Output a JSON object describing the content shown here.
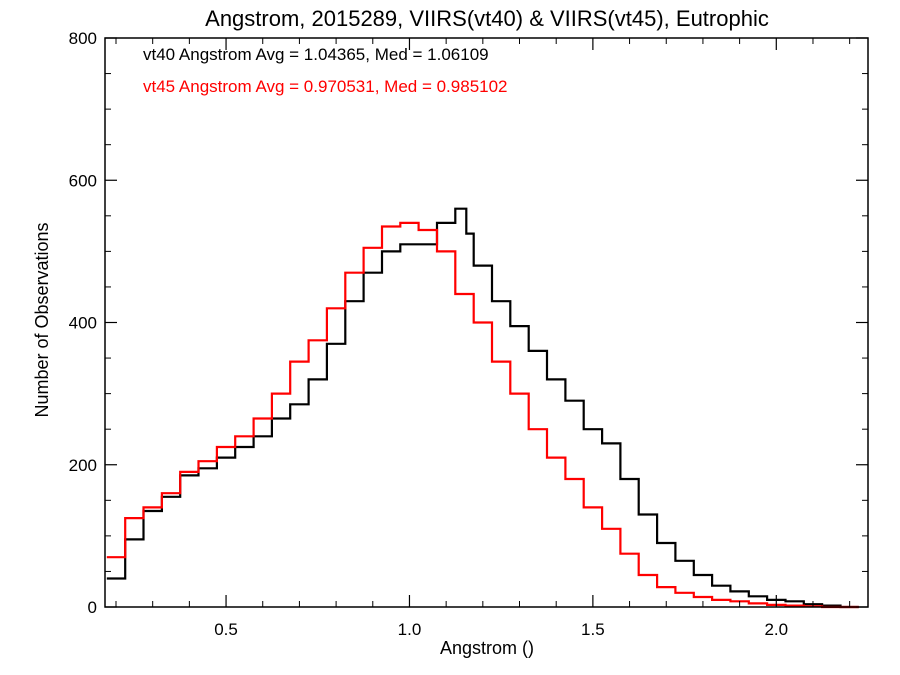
{
  "chart_data": {
    "type": "histogram",
    "title": "Angstrom, 2015289, VIIRS(vt40) & VIIRS(vt45), Eutrophic",
    "xlabel": "Angstrom ()",
    "ylabel": "Number of Observations",
    "xlim": [
      0.17,
      2.25
    ],
    "ylim": [
      0,
      800
    ],
    "x_ticks": [
      0.5,
      1.0,
      1.5,
      2.0
    ],
    "x_tick_labels": [
      "0.5",
      "1.0",
      "1.5",
      "2.0"
    ],
    "y_ticks": [
      0,
      200,
      400,
      600,
      800
    ],
    "y_tick_labels": [
      "0",
      "200",
      "400",
      "600",
      "800"
    ],
    "annotations": [
      {
        "text": "vt40 Angstrom Avg = 1.04365, Med = 1.06109",
        "color": "#000000"
      },
      {
        "text": "vt45 Angstrom Avg = 0.970531, Med = 0.985102",
        "color": "#ff0000"
      }
    ],
    "series": [
      {
        "color": "#000000",
        "x": [
          0.2,
          0.25,
          0.3,
          0.35,
          0.4,
          0.45,
          0.5,
          0.55,
          0.6,
          0.65,
          0.7,
          0.75,
          0.8,
          0.85,
          0.9,
          0.95,
          1.0,
          1.05,
          1.1,
          1.13,
          1.15,
          1.2,
          1.25,
          1.3,
          1.35,
          1.4,
          1.45,
          1.5,
          1.55,
          1.6,
          1.65,
          1.7,
          1.75,
          1.8,
          1.85,
          1.9,
          1.95,
          2.0,
          2.05,
          2.1,
          2.15,
          2.2
        ],
        "y": [
          40,
          95,
          135,
          155,
          185,
          195,
          210,
          225,
          240,
          265,
          285,
          320,
          370,
          430,
          470,
          500,
          510,
          510,
          540,
          560,
          525,
          480,
          430,
          395,
          360,
          320,
          290,
          250,
          230,
          180,
          130,
          90,
          65,
          45,
          30,
          22,
          15,
          10,
          8,
          4,
          2,
          0
        ]
      },
      {
        "color": "#ff0000",
        "x": [
          0.2,
          0.25,
          0.3,
          0.35,
          0.4,
          0.45,
          0.5,
          0.55,
          0.6,
          0.65,
          0.7,
          0.75,
          0.8,
          0.85,
          0.9,
          0.95,
          1.0,
          1.05,
          1.1,
          1.15,
          1.2,
          1.25,
          1.3,
          1.35,
          1.4,
          1.45,
          1.5,
          1.55,
          1.6,
          1.65,
          1.7,
          1.75,
          1.8,
          1.85,
          1.9,
          1.95,
          2.0,
          2.05,
          2.1,
          2.15,
          2.2
        ],
        "y": [
          70,
          125,
          140,
          160,
          190,
          205,
          225,
          240,
          265,
          300,
          345,
          375,
          420,
          470,
          505,
          535,
          540,
          530,
          500,
          440,
          400,
          345,
          300,
          250,
          210,
          180,
          140,
          110,
          75,
          45,
          28,
          20,
          14,
          10,
          8,
          5,
          3,
          2,
          1,
          0,
          0
        ]
      }
    ]
  }
}
